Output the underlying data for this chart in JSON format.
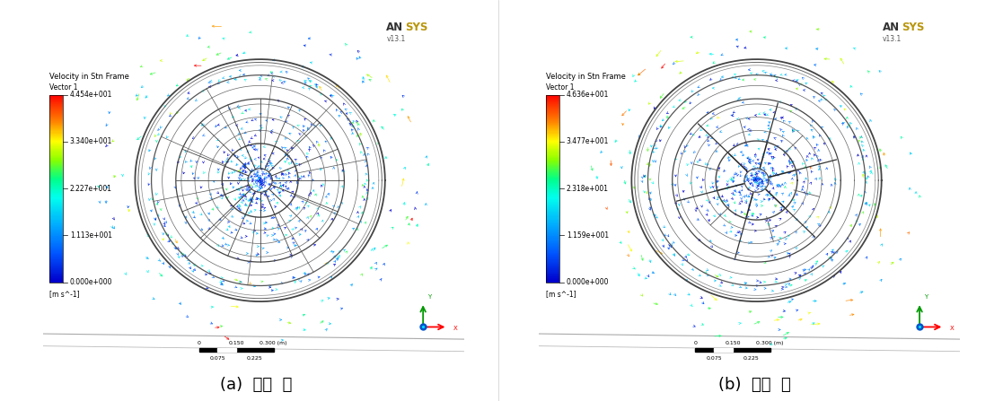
{
  "fig_width": 11.17,
  "fig_height": 4.47,
  "background_color": "#ffffff",
  "left_panel": {
    "title_line1": "Velocity in Stn Frame",
    "title_line2": "Vector 1",
    "colorbar_vals": [
      "4.454e+001",
      "3.340e+001",
      "2.227e+001",
      "1.113e+001",
      "0.000e+000"
    ],
    "colorbar_unit": "[m s^-1]",
    "caption": "(a)  기본  휠",
    "ansys_ver": "v13.1"
  },
  "right_panel": {
    "title_line1": "Velocity in Stn Frame",
    "title_line2": "Vector 1",
    "colorbar_vals": [
      "4.636e+001",
      "3.477e+001",
      "2.318e+001",
      "1.159e+001",
      "0.000e+000"
    ],
    "colorbar_unit": "[m s^-1]",
    "caption": "(b)  개발  휠",
    "ansys_ver": "v13.1"
  }
}
